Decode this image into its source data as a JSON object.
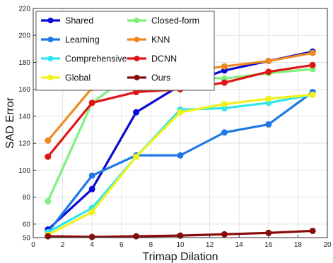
{
  "chart_data": {
    "type": "line",
    "title": "",
    "xlabel": "Trimap Dilation",
    "ylabel": "SAD Error",
    "xlim": [
      0,
      20
    ],
    "ylim": [
      50,
      220
    ],
    "xticks": [
      0,
      2,
      4,
      6,
      8,
      10,
      12,
      14,
      16,
      18,
      20
    ],
    "yticks": [
      50,
      60,
      80,
      100,
      120,
      140,
      160,
      180,
      200,
      220
    ],
    "grid": true,
    "legend_position": "top-left",
    "x": [
      1,
      4,
      7,
      10,
      13,
      16,
      19
    ],
    "series": [
      {
        "name": "Shared",
        "color": "#0a0ad6",
        "values": [
          56,
          86,
          143,
          163,
          174,
          181,
          188
        ]
      },
      {
        "name": "Learning",
        "color": "#1e78e6",
        "values": [
          54,
          96,
          111,
          111,
          128,
          134,
          158
        ]
      },
      {
        "name": "Comprehensive",
        "color": "#2ee6f0",
        "values": [
          54,
          72,
          110,
          145,
          146,
          150,
          156
        ]
      },
      {
        "name": "Global",
        "color": "#f2f21a",
        "values": [
          52,
          69,
          110,
          143,
          149,
          153,
          156
        ]
      },
      {
        "name": "Closed-form",
        "color": "#7ef07e",
        "values": [
          77,
          150,
          174,
          170,
          168,
          172,
          175
        ]
      },
      {
        "name": "KNN",
        "color": "#f08a1e",
        "values": [
          122,
          161,
          171,
          173,
          177,
          181,
          187
        ]
      },
      {
        "name": "DCNN",
        "color": "#e01414",
        "values": [
          110,
          150,
          158,
          160,
          165,
          173,
          178
        ]
      },
      {
        "name": "Ours",
        "color": "#8a0a0a",
        "values": [
          51,
          50.5,
          51,
          51.5,
          52.5,
          53.5,
          55
        ]
      }
    ]
  }
}
